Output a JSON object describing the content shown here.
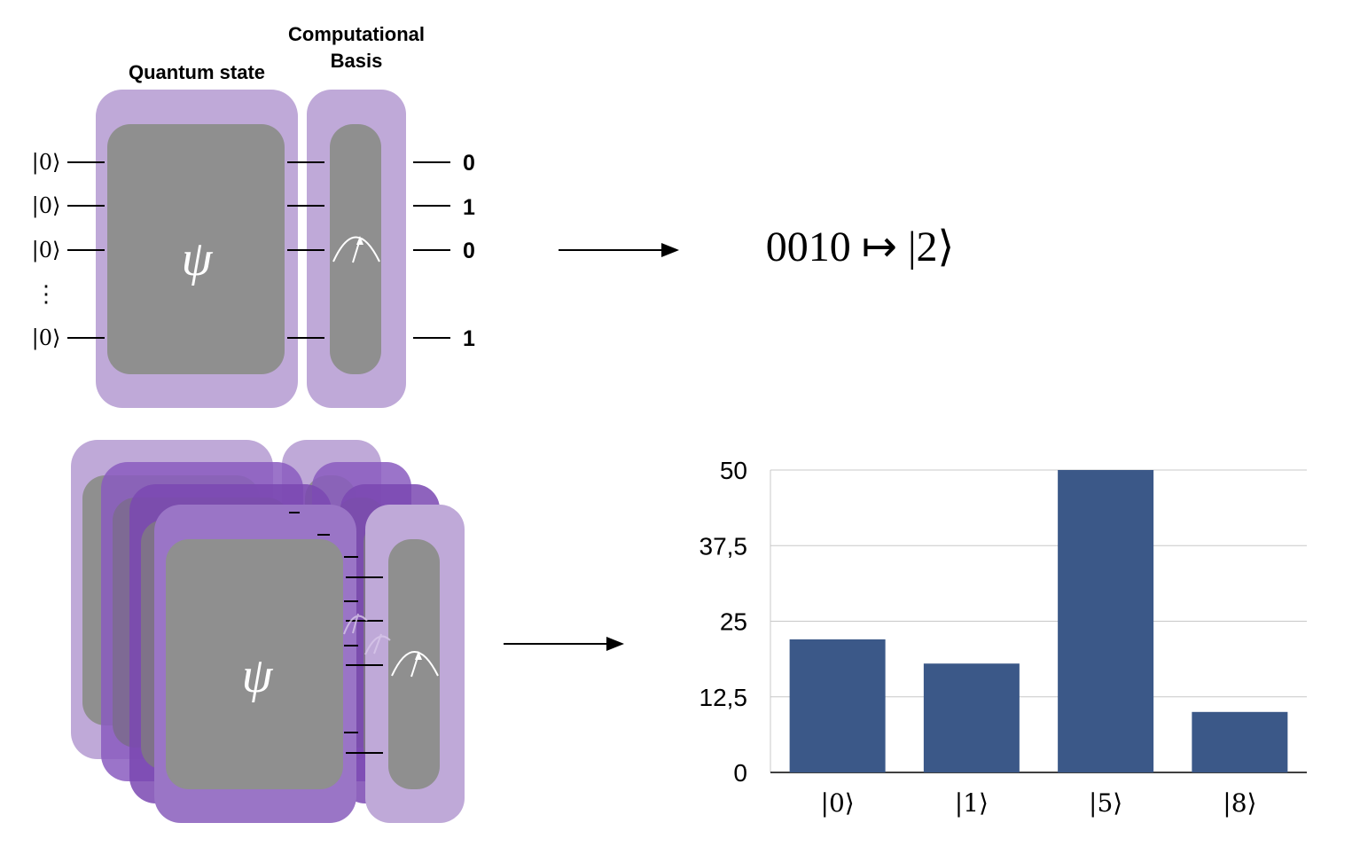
{
  "labels": {
    "quantum_state": "Quantum state",
    "computational_basis_line1": "Computational",
    "computational_basis_line2": "Basis",
    "psi": "ψ"
  },
  "circuit": {
    "inputs": [
      "|0⟩",
      "|0⟩",
      "|0⟩",
      "|0⟩"
    ],
    "ellipsis": "⋮",
    "outputs": [
      "0",
      "1",
      "0",
      "1"
    ]
  },
  "mapping_text": "0010 ↦ |2⟩",
  "colors": {
    "purple_light": "#bfa9d8",
    "purple_mid": "#9a75c6",
    "purple_dark": "#6b3fa0",
    "gray_box": "#8f8f8f",
    "bar": "#3b5888",
    "grid": "#c8c8c8"
  },
  "chart_data": {
    "type": "bar",
    "categories": [
      "|0⟩",
      "|1⟩",
      "|5⟩",
      "|8⟩"
    ],
    "values": [
      22,
      18,
      50,
      10
    ],
    "ylim": [
      0,
      50
    ],
    "yticks": [
      0,
      12.5,
      25,
      37.5,
      50
    ],
    "ytick_labels": [
      "0",
      "12,5",
      "25",
      "37,5",
      "50"
    ],
    "grid": true
  }
}
